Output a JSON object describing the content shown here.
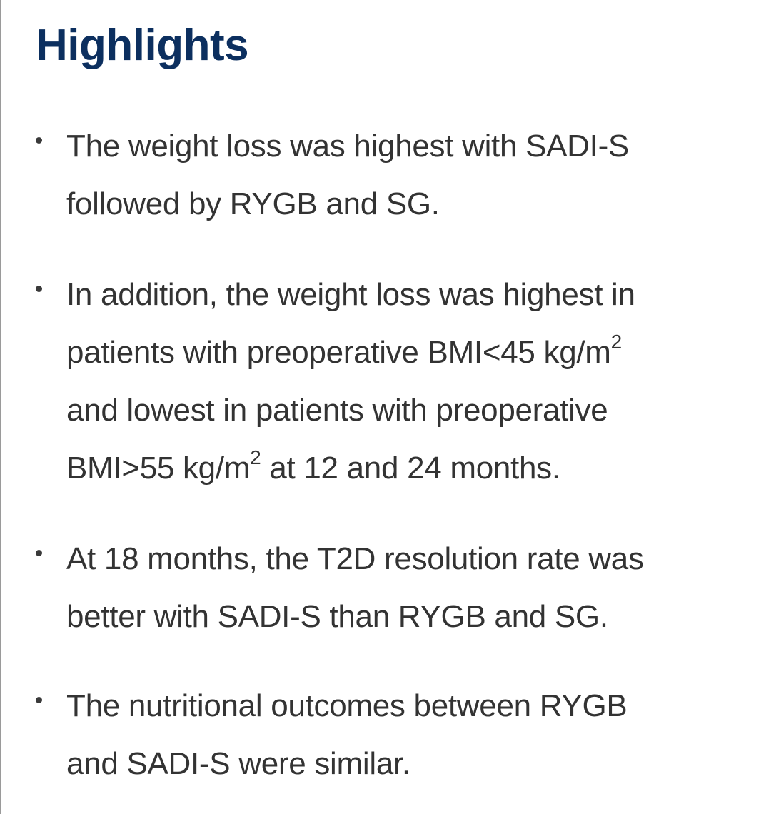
{
  "heading": "Highlights",
  "highlights": [
    {
      "line1": "The weight loss was highest with SADI-S",
      "line2": "followed by RYGB and SG."
    },
    {
      "line1": "In addition, the weight loss was highest in",
      "line2_a": "patients with preoperative BMI<45 kg/m",
      "line2_sup": "2",
      "line3": "and lowest in patients with preoperative",
      "line4_a": "BMI>55 kg/m",
      "line4_sup": "2",
      "line4_b": " at 12 and 24 months."
    },
    {
      "line1": "At 18 months, the T2D resolution rate was",
      "line2": "better with SADI-S than RYGB and SG."
    },
    {
      "line1": "The nutritional outcomes between RYGB",
      "line2": "and SADI-S were similar."
    }
  ]
}
